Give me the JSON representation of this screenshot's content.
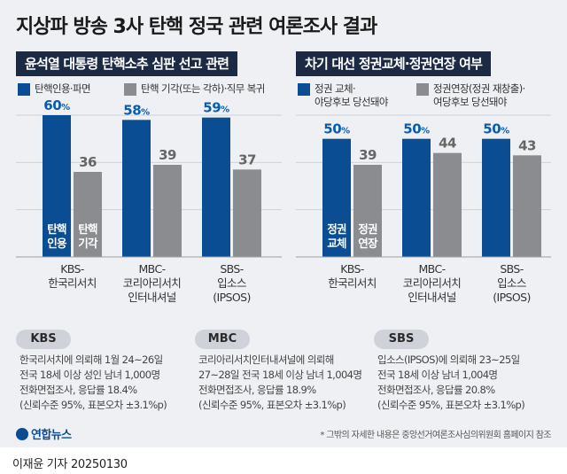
{
  "title": "지상파 방송 3사 탄핵 정국 관련 여론조사 결과",
  "panels": [
    {
      "title": "윤석열 대통령 탄핵소추 심판 선고 관련",
      "legend": [
        "탄핵인용·파면",
        "탄핵 기각(또는 각하)·직무 복귀"
      ]
    },
    {
      "title": "차기 대선 정권교체·정권연장 여부",
      "legend": [
        "정권 교체·\n야당후보 당선돼야",
        "정권연장(정권 재창출)·\n여당후보 당선돼야"
      ]
    }
  ],
  "colors": {
    "blue": "#0a4d93",
    "gray": "#8a8c90",
    "blue_label": "#0a5cad"
  },
  "chart_data": [
    {
      "type": "bar",
      "title": "윤석열 대통령 탄핵소추 심판 선고 관련",
      "categories": [
        "KBS-\n한국리서치",
        "MBC-\n코리아리서치\n인터내셔널",
        "SBS-\n입소스\n(IPSOS)"
      ],
      "series": [
        {
          "name": "탄핵인용·파면",
          "values": [
            60,
            58,
            59
          ],
          "bar_label": "탄핵\n인용"
        },
        {
          "name": "탄핵 기각(또는 각하)·직무 복귀",
          "values": [
            36,
            39,
            37
          ],
          "bar_label": "탄핵\n기각"
        }
      ],
      "unit": "%",
      "ylim": [
        0,
        60
      ]
    },
    {
      "type": "bar",
      "title": "차기 대선 정권교체·정권연장 여부",
      "categories": [
        "KBS-\n한국리서치",
        "MBC-\n코리아리서치\n인터내셔널",
        "SBS-\n입소스\n(IPSOS)"
      ],
      "series": [
        {
          "name": "정권 교체·야당후보 당선돼야",
          "values": [
            50,
            50,
            50
          ],
          "bar_label": "정권\n교체"
        },
        {
          "name": "정권연장(정권 재창출)·여당후보 당선돼야",
          "values": [
            39,
            44,
            43
          ],
          "bar_label": "정권\n연장"
        }
      ],
      "unit": "%",
      "ylim": [
        0,
        60
      ]
    }
  ],
  "surveys": [
    {
      "tag": "KBS",
      "text": "한국리서치에 의뢰해 1월 24~26일\n전국 18세 이상 성인 남녀 1,000명\n전화면접조사, 응답률 18.4%\n(신뢰수준 95%, 표본오차 ±3.1%p)"
    },
    {
      "tag": "MBC",
      "text": "코리아리서치인터내셔널에 의뢰해\n27~28일 전국 18세 이상 남녀 1,004명\n전화면접조사, 응답률 18.9%\n(신뢰수준 95%, 표본오차 ±3.1%p)"
    },
    {
      "tag": "SBS",
      "text": "입소스(IPSOS)에 의뢰해 23~25일\n전국 18세 이상 남녀 1,004명\n전화면접조사, 응답률 20.8%\n(신뢰수준 95%, 표본오차 ±3.1%p)"
    }
  ],
  "logo": "연합뉴스",
  "footnote": "* 그밖의 자세한 내용은 중앙선거여론조사심의위원회 홈페이지 참조",
  "credit": "이재윤 기자  20250130"
}
